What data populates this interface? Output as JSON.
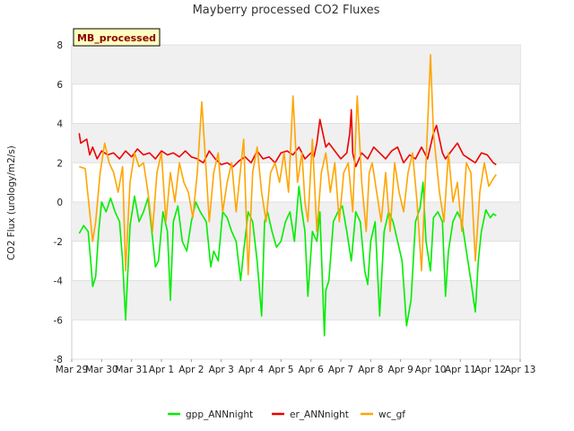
{
  "chart_data": {
    "type": "line",
    "title": "Mayberry processed CO2 Fluxes",
    "ylabel": "CO2 Flux (urology/m2/s)",
    "xlabel": "",
    "badge": "MB_processed",
    "ylim": [
      -8,
      8
    ],
    "yticks": [
      -8,
      -6,
      -4,
      -2,
      0,
      2,
      4,
      6,
      8
    ],
    "xlim": [
      0,
      15
    ],
    "xtick_labels": [
      "Mar 29",
      "Mar 30",
      "Mar 31",
      "Apr 1",
      "Apr 2",
      "Apr 3",
      "Apr 4",
      "Apr 5",
      "Apr 6",
      "Apr 7",
      "Apr 8",
      "Apr 9",
      "Apr 10",
      "Apr 11",
      "Apr 12",
      "Apr 13"
    ],
    "grid": true,
    "legend_position": "bottom",
    "colors": {
      "gpp_ANNnight": "#00ee00",
      "er_ANNnight": "#ee0000",
      "wc_gf": "#ffa500",
      "band": "#f0f0f0"
    },
    "series": [
      {
        "name": "gpp_ANNnight",
        "x": [
          0.25,
          0.4,
          0.55,
          0.65,
          0.7,
          0.8,
          0.9,
          1.0,
          1.15,
          1.3,
          1.45,
          1.6,
          1.7,
          1.8,
          1.95,
          2.1,
          2.25,
          2.4,
          2.55,
          2.7,
          2.8,
          2.9,
          3.05,
          3.2,
          3.3,
          3.4,
          3.55,
          3.7,
          3.85,
          4.0,
          4.15,
          4.3,
          4.5,
          4.65,
          4.75,
          4.9,
          5.05,
          5.2,
          5.35,
          5.5,
          5.65,
          5.75,
          5.9,
          6.05,
          6.2,
          6.35,
          6.45,
          6.55,
          6.7,
          6.85,
          7.0,
          7.15,
          7.3,
          7.45,
          7.6,
          7.7,
          7.8,
          7.9,
          8.05,
          8.2,
          8.3,
          8.45,
          8.5,
          8.6,
          8.75,
          8.9,
          9.05,
          9.2,
          9.35,
          9.5,
          9.65,
          9.8,
          9.9,
          10.0,
          10.15,
          10.3,
          10.45,
          10.6,
          10.75,
          10.9,
          11.05,
          11.2,
          11.35,
          11.5,
          11.65,
          11.75,
          11.85,
          12.0,
          12.1,
          12.25,
          12.4,
          12.5,
          12.6,
          12.75,
          12.9,
          13.05,
          13.2,
          13.35,
          13.5,
          13.6,
          13.7,
          13.85,
          14.0,
          14.1,
          14.2
        ],
        "values": [
          -1.6,
          -1.2,
          -1.5,
          -3.3,
          -4.3,
          -3.8,
          -1.5,
          0.0,
          -0.5,
          0.2,
          -0.5,
          -1.0,
          -3.0,
          -6.0,
          -1.2,
          0.3,
          -1.0,
          -0.5,
          0.2,
          -1.8,
          -3.3,
          -3.0,
          -0.5,
          -1.5,
          -5.0,
          -1.0,
          -0.2,
          -2.0,
          -2.5,
          -1.0,
          0.0,
          -0.5,
          -1.0,
          -3.3,
          -2.5,
          -3.0,
          -0.5,
          -0.8,
          -1.5,
          -2.0,
          -4.0,
          -2.5,
          -0.5,
          -1.0,
          -3.0,
          -5.8,
          -1.0,
          -0.5,
          -1.5,
          -2.3,
          -2.0,
          -1.0,
          -0.5,
          -2.0,
          0.8,
          -0.5,
          -1.5,
          -4.8,
          -1.5,
          -2.0,
          -0.5,
          -6.8,
          -4.5,
          -4.0,
          -1.0,
          -0.5,
          -0.2,
          -1.5,
          -3.0,
          -0.5,
          -1.0,
          -3.5,
          -4.2,
          -2.0,
          -1.0,
          -5.8,
          -1.5,
          -0.5,
          -1.0,
          -2.0,
          -3.0,
          -6.3,
          -5.0,
          -1.0,
          -0.3,
          1.0,
          -2.0,
          -3.5,
          -0.8,
          -0.5,
          -1.0,
          -4.8,
          -2.5,
          -1.0,
          -0.5,
          -1.0,
          -2.5,
          -4.0,
          -5.6,
          -3.0,
          -1.5,
          -0.4,
          -0.8,
          -0.6,
          -0.7
        ]
      },
      {
        "name": "er_ANNnight",
        "x": [
          0.25,
          0.3,
          0.5,
          0.6,
          0.7,
          0.85,
          1.0,
          1.2,
          1.4,
          1.6,
          1.8,
          2.0,
          2.2,
          2.4,
          2.6,
          2.8,
          3.0,
          3.2,
          3.4,
          3.6,
          3.8,
          4.0,
          4.2,
          4.4,
          4.6,
          4.8,
          5.0,
          5.2,
          5.4,
          5.6,
          5.8,
          6.0,
          6.2,
          6.4,
          6.6,
          6.8,
          7.0,
          7.2,
          7.4,
          7.6,
          7.8,
          8.0,
          8.1,
          8.2,
          8.3,
          8.4,
          8.5,
          8.6,
          8.8,
          9.0,
          9.2,
          9.3,
          9.35,
          9.4,
          9.5,
          9.7,
          9.9,
          10.1,
          10.3,
          10.5,
          10.7,
          10.9,
          11.1,
          11.3,
          11.5,
          11.7,
          11.9,
          12.1,
          12.2,
          12.3,
          12.4,
          12.5,
          12.7,
          12.9,
          13.1,
          13.3,
          13.5,
          13.7,
          13.9,
          14.1,
          14.2
        ],
        "values": [
          3.5,
          3.0,
          3.2,
          2.4,
          2.8,
          2.2,
          2.6,
          2.4,
          2.5,
          2.2,
          2.6,
          2.3,
          2.7,
          2.4,
          2.5,
          2.2,
          2.6,
          2.4,
          2.5,
          2.3,
          2.6,
          2.3,
          2.2,
          2.0,
          2.6,
          2.2,
          1.9,
          2.0,
          1.8,
          2.1,
          2.3,
          2.0,
          2.6,
          2.2,
          2.3,
          2.0,
          2.5,
          2.6,
          2.4,
          2.8,
          2.2,
          2.5,
          2.3,
          3.0,
          4.2,
          3.5,
          2.8,
          3.0,
          2.6,
          2.2,
          2.5,
          3.5,
          4.7,
          2.5,
          1.8,
          2.5,
          2.2,
          2.8,
          2.5,
          2.2,
          2.6,
          2.8,
          2.0,
          2.4,
          2.2,
          2.8,
          2.2,
          3.5,
          3.9,
          3.2,
          2.5,
          2.2,
          2.6,
          3.0,
          2.4,
          2.2,
          2.0,
          2.5,
          2.4,
          2.0,
          1.9
        ]
      },
      {
        "name": "wc_gf",
        "x": [
          0.25,
          0.45,
          0.6,
          0.7,
          0.8,
          0.95,
          1.1,
          1.25,
          1.4,
          1.55,
          1.7,
          1.8,
          1.95,
          2.1,
          2.25,
          2.4,
          2.55,
          2.7,
          2.85,
          3.0,
          3.15,
          3.3,
          3.45,
          3.6,
          3.75,
          3.9,
          4.05,
          4.2,
          4.35,
          4.5,
          4.6,
          4.75,
          4.9,
          5.05,
          5.2,
          5.35,
          5.5,
          5.6,
          5.75,
          5.9,
          6.05,
          6.2,
          6.35,
          6.5,
          6.65,
          6.8,
          6.95,
          7.1,
          7.25,
          7.4,
          7.55,
          7.7,
          7.8,
          7.9,
          8.05,
          8.2,
          8.35,
          8.5,
          8.65,
          8.8,
          8.95,
          9.1,
          9.25,
          9.4,
          9.55,
          9.7,
          9.85,
          9.95,
          10.05,
          10.2,
          10.35,
          10.5,
          10.65,
          10.8,
          10.95,
          11.1,
          11.25,
          11.4,
          11.55,
          11.7,
          11.85,
          12.0,
          12.1,
          12.2,
          12.3,
          12.45,
          12.6,
          12.75,
          12.9,
          13.05,
          13.2,
          13.35,
          13.5,
          13.65,
          13.8,
          13.95,
          14.1,
          14.2
        ],
        "values": [
          1.8,
          1.7,
          -0.5,
          -2.0,
          -1.0,
          1.5,
          3.0,
          2.0,
          1.5,
          0.5,
          1.8,
          -3.5,
          1.0,
          2.5,
          1.8,
          2.0,
          0.5,
          -1.5,
          1.5,
          2.5,
          -1.0,
          1.5,
          0.0,
          2.0,
          1.0,
          0.5,
          -0.8,
          1.5,
          5.1,
          1.5,
          -1.0,
          1.5,
          2.5,
          -0.5,
          1.0,
          2.0,
          -0.5,
          1.0,
          3.2,
          -3.7,
          1.5,
          2.8,
          0.5,
          -1.0,
          1.5,
          2.0,
          1.0,
          2.5,
          0.5,
          5.4,
          1.0,
          2.5,
          0.0,
          -1.0,
          3.2,
          -1.5,
          1.5,
          2.5,
          0.5,
          2.0,
          -1.0,
          1.5,
          2.0,
          -0.5,
          5.4,
          1.0,
          -1.5,
          1.5,
          2.0,
          0.5,
          -1.0,
          1.5,
          -1.5,
          2.0,
          0.5,
          -0.5,
          1.5,
          2.5,
          0.0,
          -3.5,
          2.0,
          7.5,
          3.5,
          2.0,
          0.5,
          -1.0,
          2.5,
          0.0,
          1.0,
          -1.5,
          2.0,
          1.5,
          -3.0,
          0.5,
          2.0,
          0.8,
          1.2,
          1.4
        ]
      }
    ]
  }
}
